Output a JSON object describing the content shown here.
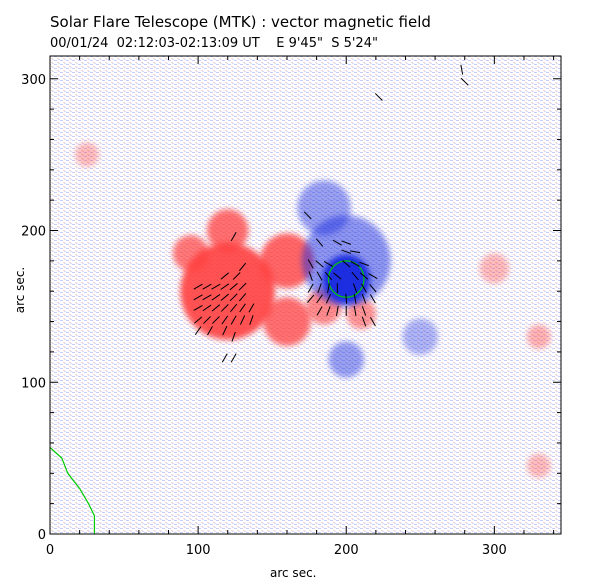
{
  "chart_data": {
    "type": "heatmap",
    "title": "Solar Flare Telescope (MTK) : vector magnetic field",
    "subtitle": "00/01/24  02:12:03-02:13:09 UT    E 9'45\"  S 5'24\"",
    "xlabel": "arc sec.",
    "ylabel": "arc sec.",
    "xlim": [
      0,
      345
    ],
    "ylim": [
      0,
      315
    ],
    "xticks": [
      0,
      100,
      200,
      300
    ],
    "yticks": [
      0,
      100,
      200,
      300
    ],
    "colors": {
      "positive": "#ff4040",
      "negative": "#1f2fe0",
      "contour": "#00cc00",
      "vector": "#000000",
      "background_noise_pos": "#f6b8b8",
      "background_noise_neg": "#b8bff6"
    },
    "regions": [
      {
        "polarity": "positive",
        "cx": 120,
        "cy": 160,
        "r": 32,
        "strength": 0.9
      },
      {
        "polarity": "positive",
        "cx": 95,
        "cy": 185,
        "r": 12,
        "strength": 0.7
      },
      {
        "polarity": "positive",
        "cx": 120,
        "cy": 200,
        "r": 14,
        "strength": 0.75
      },
      {
        "polarity": "positive",
        "cx": 160,
        "cy": 180,
        "r": 18,
        "strength": 0.8
      },
      {
        "polarity": "positive",
        "cx": 160,
        "cy": 140,
        "r": 16,
        "strength": 0.75
      },
      {
        "polarity": "positive",
        "cx": 185,
        "cy": 150,
        "r": 12,
        "strength": 0.6
      },
      {
        "polarity": "positive",
        "cx": 210,
        "cy": 145,
        "r": 10,
        "strength": 0.55
      },
      {
        "polarity": "negative",
        "cx": 200,
        "cy": 168,
        "r": 16,
        "strength": 1.0
      },
      {
        "polarity": "negative",
        "cx": 200,
        "cy": 180,
        "r": 30,
        "strength": 0.5
      },
      {
        "polarity": "negative",
        "cx": 185,
        "cy": 215,
        "r": 18,
        "strength": 0.45
      },
      {
        "polarity": "negative",
        "cx": 200,
        "cy": 115,
        "r": 12,
        "strength": 0.45
      },
      {
        "polarity": "negative",
        "cx": 250,
        "cy": 130,
        "r": 12,
        "strength": 0.35
      },
      {
        "polarity": "positive",
        "cx": 300,
        "cy": 175,
        "r": 10,
        "strength": 0.35
      },
      {
        "polarity": "positive",
        "cx": 330,
        "cy": 130,
        "r": 8,
        "strength": 0.4
      },
      {
        "polarity": "positive",
        "cx": 25,
        "cy": 250,
        "r": 8,
        "strength": 0.35
      },
      {
        "polarity": "positive",
        "cx": 330,
        "cy": 45,
        "r": 8,
        "strength": 0.35
      }
    ],
    "contour_spot": {
      "cx": 200,
      "cy": 168,
      "rx": 12,
      "ry": 12
    },
    "contour_edge": [
      [
        0,
        57
      ],
      [
        8,
        50
      ],
      [
        12,
        40
      ],
      [
        20,
        30
      ],
      [
        26,
        20
      ],
      [
        30,
        12
      ],
      [
        30,
        0
      ]
    ],
    "vectors": [
      [
        100,
        163,
        30
      ],
      [
        106,
        163,
        30
      ],
      [
        112,
        163,
        30
      ],
      [
        118,
        163,
        35
      ],
      [
        124,
        163,
        40
      ],
      [
        130,
        163,
        45
      ],
      [
        100,
        156,
        30
      ],
      [
        106,
        156,
        30
      ],
      [
        112,
        156,
        35
      ],
      [
        118,
        156,
        40
      ],
      [
        124,
        156,
        45
      ],
      [
        130,
        156,
        50
      ],
      [
        100,
        149,
        30
      ],
      [
        106,
        149,
        35
      ],
      [
        112,
        149,
        40
      ],
      [
        118,
        149,
        45
      ],
      [
        124,
        149,
        50
      ],
      [
        130,
        149,
        55
      ],
      [
        136,
        149,
        60
      ],
      [
        100,
        141,
        40
      ],
      [
        106,
        141,
        45
      ],
      [
        112,
        141,
        45
      ],
      [
        118,
        141,
        55
      ],
      [
        124,
        141,
        60
      ],
      [
        130,
        141,
        65
      ],
      [
        136,
        141,
        70
      ],
      [
        100,
        134,
        55
      ],
      [
        108,
        134,
        60
      ],
      [
        118,
        134,
        65
      ],
      [
        124,
        130,
        70
      ],
      [
        118,
        170,
        40
      ],
      [
        126,
        170,
        45
      ],
      [
        130,
        176,
        50
      ],
      [
        124,
        196,
        60
      ],
      [
        118,
        116,
        60
      ],
      [
        124,
        116,
        60
      ],
      [
        176,
        178,
        120
      ],
      [
        182,
        178,
        140
      ],
      [
        188,
        178,
        150
      ],
      [
        176,
        170,
        110
      ],
      [
        182,
        170,
        120
      ],
      [
        188,
        170,
        130
      ],
      [
        194,
        170,
        140
      ],
      [
        176,
        162,
        60
      ],
      [
        182,
        162,
        70
      ],
      [
        188,
        162,
        80
      ],
      [
        194,
        162,
        90
      ],
      [
        176,
        155,
        50
      ],
      [
        182,
        155,
        55
      ],
      [
        188,
        155,
        65
      ],
      [
        182,
        147,
        60
      ],
      [
        188,
        147,
        70
      ],
      [
        194,
        147,
        80
      ],
      [
        200,
        147,
        90
      ],
      [
        206,
        147,
        100
      ],
      [
        212,
        147,
        110
      ],
      [
        200,
        155,
        95
      ],
      [
        206,
        155,
        100
      ],
      [
        212,
        155,
        110
      ],
      [
        218,
        155,
        120
      ],
      [
        206,
        162,
        110
      ],
      [
        212,
        162,
        120
      ],
      [
        218,
        162,
        130
      ],
      [
        206,
        170,
        130
      ],
      [
        212,
        170,
        140
      ],
      [
        218,
        170,
        150
      ],
      [
        200,
        178,
        140
      ],
      [
        206,
        178,
        150
      ],
      [
        212,
        178,
        160
      ],
      [
        200,
        186,
        160
      ],
      [
        206,
        186,
        170
      ],
      [
        182,
        192,
        130
      ],
      [
        194,
        192,
        150
      ],
      [
        200,
        192,
        160
      ],
      [
        174,
        210,
        135
      ],
      [
        212,
        140,
        110
      ],
      [
        218,
        140,
        120
      ],
      [
        278,
        306,
        100
      ],
      [
        280,
        298,
        135
      ],
      [
        222,
        288,
        135
      ]
    ]
  }
}
